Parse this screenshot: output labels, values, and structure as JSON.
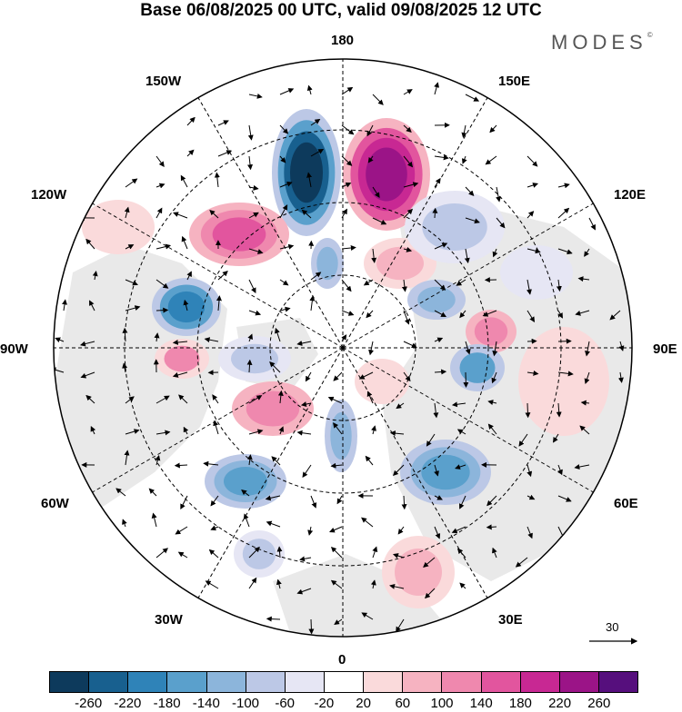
{
  "title": "Base 06/08/2025 00 UTC, valid 09/08/2025 12 UTC",
  "brand": "MODES",
  "brand_mark": "©",
  "longitude_labels": [
    "180",
    "150E",
    "120E",
    "90E",
    "60E",
    "30E",
    "0",
    "30W",
    "60W",
    "90W",
    "120W",
    "150W"
  ],
  "colorbar": {
    "ticks": [
      "-260",
      "-220",
      "-180",
      "-140",
      "-100",
      "-60",
      "-20",
      "20",
      "60",
      "100",
      "140",
      "180",
      "220",
      "260"
    ],
    "colors": [
      "#0d3a5c",
      "#18608f",
      "#2f83b8",
      "#5aa0cc",
      "#8cb5db",
      "#bcc8e6",
      "#e6e6f4",
      "#ffffff",
      "#fadadb",
      "#f6b3c1",
      "#ef88ae",
      "#e2559e",
      "#c82893",
      "#9b1487",
      "#560f7d"
    ]
  },
  "vector_reference": "30"
}
